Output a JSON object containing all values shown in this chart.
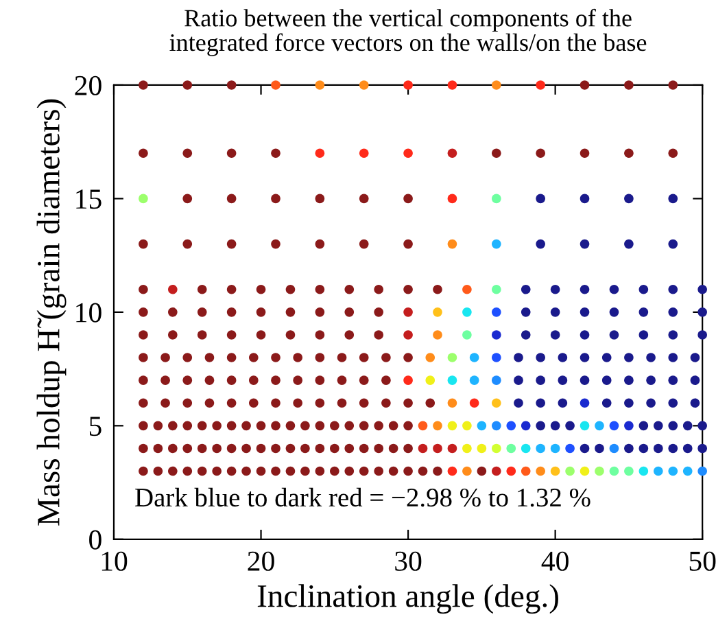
{
  "chart_data": {
    "type": "scatter",
    "title": "Ratio between the vertical components of the\nintegrated force vectors on the walls/on the base",
    "xlabel": "Inclination angle (deg.)",
    "ylabel": "Mass holdup H̃ (grain diameters)",
    "annotations": [
      "Dark blue to dark red = −2.98 % to 1.32 %"
    ],
    "xlim": [
      10,
      50
    ],
    "ylim": [
      0,
      20
    ],
    "xticks": [
      10,
      20,
      30,
      40,
      50
    ],
    "yticks": [
      0,
      5,
      10,
      15,
      20
    ],
    "marker": "circle",
    "series": [
      {
        "x": [
          12,
          15,
          18,
          21,
          24,
          27,
          30,
          33,
          36,
          39,
          42,
          45,
          48
        ],
        "values": [
          20,
          20,
          20,
          20,
          20,
          20,
          20,
          20,
          20,
          20,
          20,
          20,
          20
        ],
        "colors": [
          "#8b1a1a",
          "#8b1a1a",
          "#8b1a1a",
          "#ff5a1a",
          "#ff8c1a",
          "#ff8c1a",
          "#ff2a1a",
          "#ff2a1a",
          "#ff8c1a",
          "#ff2a1a",
          "#8b1a1a",
          "#8b1a1a",
          "#8b1a1a"
        ]
      },
      {
        "x": [
          12,
          15,
          18,
          21,
          24,
          27,
          30,
          33,
          36,
          39,
          42,
          45,
          48
        ],
        "values": [
          17,
          17,
          17,
          17,
          17,
          17,
          17,
          17,
          17,
          17,
          17,
          17,
          17
        ],
        "colors": [
          "#8b1a1a",
          "#8b1a1a",
          "#8b1a1a",
          "#8b1a1a",
          "#ff2a1a",
          "#ff2a1a",
          "#ff2a1a",
          "#c41e1e",
          "#8b1a1a",
          "#8b1a1a",
          "#8b1a1a",
          "#8b1a1a",
          "#8b1a1a"
        ]
      },
      {
        "x": [
          12,
          15,
          18,
          21,
          24,
          27,
          30,
          33,
          36,
          39,
          42,
          45,
          48
        ],
        "values": [
          15,
          15,
          15,
          15,
          15,
          15,
          15,
          15,
          15,
          15,
          15,
          15,
          15
        ],
        "colors": [
          "#9cff6c",
          "#8b1a1a",
          "#8b1a1a",
          "#8b1a1a",
          "#8b1a1a",
          "#8b1a1a",
          "#8b1a1a",
          "#ff2a1a",
          "#6effa0",
          "#1a1a8c",
          "#1a1a8c",
          "#1a1a8c",
          "#1a1a8c"
        ]
      },
      {
        "x": [
          12,
          15,
          18,
          21,
          24,
          27,
          30,
          33,
          36,
          39,
          42,
          45,
          48
        ],
        "values": [
          13,
          13,
          13,
          13,
          13,
          13,
          13,
          13,
          13,
          13,
          13,
          13,
          13
        ],
        "colors": [
          "#8b1a1a",
          "#8b1a1a",
          "#8b1a1a",
          "#8b1a1a",
          "#8b1a1a",
          "#8b1a1a",
          "#8b1a1a",
          "#ff8c1a",
          "#1eb4ff",
          "#1a1a8c",
          "#1a1a8c",
          "#1a1a8c",
          "#1a1a8c"
        ]
      },
      {
        "x": [
          12,
          14,
          16,
          18,
          20,
          22,
          24,
          26,
          28,
          30,
          32,
          34,
          36,
          38,
          40,
          42,
          44,
          46,
          48,
          50
        ],
        "values": [
          11,
          11,
          11,
          11,
          11,
          11,
          11,
          11,
          11,
          11,
          11,
          11,
          11,
          11,
          11,
          11,
          11,
          11,
          11,
          11
        ],
        "colors": [
          "#8b1a1a",
          "#c41e1e",
          "#8b1a1a",
          "#8b1a1a",
          "#8b1a1a",
          "#8b1a1a",
          "#8b1a1a",
          "#8b1a1a",
          "#8b1a1a",
          "#8b1a1a",
          "#8b1a1a",
          "#ff5a1a",
          "#6effa0",
          "#1a1a8c",
          "#1a1a8c",
          "#1a1a8c",
          "#1a1a8c",
          "#1a1a8c",
          "#1a1a8c",
          "#1a1a8c"
        ]
      },
      {
        "x": [
          12,
          14,
          16,
          18,
          20,
          22,
          24,
          26,
          28,
          30,
          32,
          34,
          36,
          38,
          40,
          42,
          44,
          46,
          48,
          50
        ],
        "values": [
          10,
          10,
          10,
          10,
          10,
          10,
          10,
          10,
          10,
          10,
          10,
          10,
          10,
          10,
          10,
          10,
          10,
          10,
          10,
          10
        ],
        "colors": [
          "#8b1a1a",
          "#8b1a1a",
          "#8b1a1a",
          "#8b1a1a",
          "#8b1a1a",
          "#8b1a1a",
          "#8b1a1a",
          "#8b1a1a",
          "#8b1a1a",
          "#c41e1e",
          "#ffc01a",
          "#19e6f0",
          "#1e50ff",
          "#1a1a8c",
          "#1a1a8c",
          "#1a1a8c",
          "#1a1a8c",
          "#1a1a8c",
          "#1a1a8c",
          "#1a1a8c"
        ]
      },
      {
        "x": [
          12,
          14,
          16,
          18,
          20,
          22,
          24,
          26,
          28,
          30,
          32,
          34,
          36,
          38,
          40,
          42,
          44,
          46,
          48,
          50
        ],
        "values": [
          9,
          9,
          9,
          9,
          9,
          9,
          9,
          9,
          9,
          9,
          9,
          9,
          9,
          9,
          9,
          9,
          9,
          9,
          9,
          9
        ],
        "colors": [
          "#8b1a1a",
          "#8b1a1a",
          "#8b1a1a",
          "#8b1a1a",
          "#8b1a1a",
          "#8b1a1a",
          "#8b1a1a",
          "#8b1a1a",
          "#8b1a1a",
          "#c41e1e",
          "#ff8c1a",
          "#6effa0",
          "#1a2ad0",
          "#1a1a8c",
          "#1a1a8c",
          "#1a1a8c",
          "#1a1a8c",
          "#1a1a8c",
          "#1a1a8c",
          "#1a1a8c"
        ]
      },
      {
        "x": [
          12,
          13.5,
          15,
          16.5,
          18,
          19.5,
          21,
          22.5,
          24,
          25.5,
          27,
          28.5,
          30,
          31.5,
          33,
          34.5,
          36,
          37.5,
          39,
          40.5,
          42,
          43.5,
          45,
          46.5,
          48,
          49.5
        ],
        "values": [
          8,
          8,
          8,
          8,
          8,
          8,
          8,
          8,
          8,
          8,
          8,
          8,
          8,
          8,
          8,
          8,
          8,
          8,
          8,
          8,
          8,
          8,
          8,
          8,
          8,
          8
        ],
        "colors": [
          "#8b1a1a",
          "#8b1a1a",
          "#8b1a1a",
          "#8b1a1a",
          "#8b1a1a",
          "#8b1a1a",
          "#8b1a1a",
          "#8b1a1a",
          "#8b1a1a",
          "#8b1a1a",
          "#8b1a1a",
          "#8b1a1a",
          "#8b1a1a",
          "#ff8c1a",
          "#9cff6c",
          "#1eb4ff",
          "#1e50ff",
          "#1a1a8c",
          "#1a1a8c",
          "#1a1a8c",
          "#1a1a8c",
          "#1a1a8c",
          "#1a1a8c",
          "#1a1a8c",
          "#1a1a8c",
          "#1a1a8c"
        ]
      },
      {
        "x": [
          12,
          13.5,
          15,
          16.5,
          18,
          19.5,
          21,
          22.5,
          24,
          25.5,
          27,
          28.5,
          30,
          31.5,
          33,
          34.5,
          36,
          37.5,
          39,
          40.5,
          42,
          43.5,
          45,
          46.5,
          48,
          49.5
        ],
        "values": [
          7,
          7,
          7,
          7,
          7,
          7,
          7,
          7,
          7,
          7,
          7,
          7,
          7,
          7,
          7,
          7,
          7,
          7,
          7,
          7,
          7,
          7,
          7,
          7,
          7,
          7
        ],
        "colors": [
          "#8b1a1a",
          "#8b1a1a",
          "#8b1a1a",
          "#8b1a1a",
          "#8b1a1a",
          "#8b1a1a",
          "#8b1a1a",
          "#8b1a1a",
          "#8b1a1a",
          "#8b1a1a",
          "#8b1a1a",
          "#8b1a1a",
          "#ff2a1a",
          "#f0f019",
          "#19e6f0",
          "#1eb4ff",
          "#1e8cff",
          "#1a1a8c",
          "#1a1a8c",
          "#1a1a8c",
          "#1a1a8c",
          "#1a1a8c",
          "#1a1a8c",
          "#1a1a8c",
          "#1a1a8c",
          "#1a1a8c"
        ]
      },
      {
        "x": [
          12,
          13.5,
          15,
          16.5,
          18,
          19.5,
          21,
          22.5,
          24,
          25.5,
          27,
          28.5,
          30,
          31.5,
          33,
          34.5,
          36,
          37.5,
          39,
          40.5,
          42,
          43.5,
          45,
          46.5,
          48,
          49.5
        ],
        "values": [
          6,
          6,
          6,
          6,
          6,
          6,
          6,
          6,
          6,
          6,
          6,
          6,
          6,
          6,
          6,
          6,
          6,
          6,
          6,
          6,
          6,
          6,
          6,
          6,
          6,
          6
        ],
        "colors": [
          "#8b1a1a",
          "#8b1a1a",
          "#8b1a1a",
          "#8b1a1a",
          "#8b1a1a",
          "#8b1a1a",
          "#8b1a1a",
          "#8b1a1a",
          "#8b1a1a",
          "#8b1a1a",
          "#8b1a1a",
          "#8b1a1a",
          "#8b1a1a",
          "#8b1a1a",
          "#ff8c1a",
          "#ff2a1a",
          "#ffc01a",
          "#1a1a8c",
          "#1a1a8c",
          "#1a1a8c",
          "#1a2ad0",
          "#1a1a8c",
          "#1a1a8c",
          "#1a1a8c",
          "#1a1a8c",
          "#1a1a8c"
        ]
      },
      {
        "x": [
          12,
          13,
          14,
          15,
          16,
          17,
          18,
          19,
          20,
          21,
          22,
          23,
          24,
          25,
          26,
          27,
          28,
          29,
          30,
          31,
          32,
          33,
          34,
          35,
          36,
          37,
          38,
          39,
          40,
          41,
          42,
          43,
          44,
          45,
          46,
          47,
          48,
          49,
          50
        ],
        "values": [
          5,
          5,
          5,
          5,
          5,
          5,
          5,
          5,
          5,
          5,
          5,
          5,
          5,
          5,
          5,
          5,
          5,
          5,
          5,
          5,
          5,
          5,
          5,
          5,
          5,
          5,
          5,
          5,
          5,
          5,
          5,
          5,
          5,
          5,
          5,
          5,
          5,
          5,
          5
        ],
        "colors": [
          "#8b1a1a",
          "#8b1a1a",
          "#8b1a1a",
          "#8b1a1a",
          "#8b1a1a",
          "#8b1a1a",
          "#8b1a1a",
          "#8b1a1a",
          "#8b1a1a",
          "#8b1a1a",
          "#8b1a1a",
          "#8b1a1a",
          "#8b1a1a",
          "#8b1a1a",
          "#8b1a1a",
          "#8b1a1a",
          "#8b1a1a",
          "#8b1a1a",
          "#8b1a1a",
          "#ff5a1a",
          "#ff8c1a",
          "#f0f019",
          "#f0f019",
          "#1eb4ff",
          "#1e8cff",
          "#1e50ff",
          "#1a2ad0",
          "#1a1a8c",
          "#1a1a8c",
          "#1a1a8c",
          "#19e6f0",
          "#1eb4ff",
          "#1e50ff",
          "#1a2ad0",
          "#1a1a8c",
          "#1a1a8c",
          "#1a1a8c",
          "#1a1a8c",
          "#1a1a8c"
        ]
      },
      {
        "x": [
          12,
          13,
          14,
          15,
          16,
          17,
          18,
          19,
          20,
          21,
          22,
          23,
          24,
          25,
          26,
          27,
          28,
          29,
          30,
          31,
          32,
          33,
          34,
          35,
          36,
          37,
          38,
          39,
          40,
          41,
          42,
          43,
          44,
          45,
          46,
          47,
          48,
          49,
          50
        ],
        "values": [
          4,
          4,
          4,
          4,
          4,
          4,
          4,
          4,
          4,
          4,
          4,
          4,
          4,
          4,
          4,
          4,
          4,
          4,
          4,
          4,
          4,
          4,
          4,
          4,
          4,
          4,
          4,
          4,
          4,
          4,
          4,
          4,
          4,
          4,
          4,
          4,
          4,
          4,
          4
        ],
        "colors": [
          "#8b1a1a",
          "#8b1a1a",
          "#8b1a1a",
          "#8b1a1a",
          "#8b1a1a",
          "#8b1a1a",
          "#8b1a1a",
          "#8b1a1a",
          "#8b1a1a",
          "#8b1a1a",
          "#8b1a1a",
          "#8b1a1a",
          "#8b1a1a",
          "#8b1a1a",
          "#8b1a1a",
          "#8b1a1a",
          "#8b1a1a",
          "#8b1a1a",
          "#8b1a1a",
          "#c41e1e",
          "#c41e1e",
          "#c41e1e",
          "#f0f019",
          "#f0f019",
          "#d2ff32",
          "#6effa0",
          "#19e6f0",
          "#1eb4ff",
          "#1eb4ff",
          "#1e50ff",
          "#1a1a8c",
          "#1a1a8c",
          "#1e8cff",
          "#1a1a8c",
          "#1a1a8c",
          "#1a1a8c",
          "#1a1a8c",
          "#1a1a8c",
          "#1a1a8c"
        ]
      },
      {
        "x": [
          12,
          13,
          14,
          15,
          16,
          17,
          18,
          19,
          20,
          21,
          22,
          23,
          24,
          25,
          26,
          27,
          28,
          29,
          30,
          31,
          32,
          33,
          34,
          35,
          36,
          37,
          38,
          39,
          40,
          41,
          42,
          43,
          44,
          45,
          46,
          47,
          48,
          49,
          50
        ],
        "values": [
          3,
          3,
          3,
          3,
          3,
          3,
          3,
          3,
          3,
          3,
          3,
          3,
          3,
          3,
          3,
          3,
          3,
          3,
          3,
          3,
          3,
          3,
          3,
          3,
          3,
          3,
          3,
          3,
          3,
          3,
          3,
          3,
          3,
          3,
          3,
          3,
          3,
          3,
          3
        ],
        "colors": [
          "#8b1a1a",
          "#8b1a1a",
          "#8b1a1a",
          "#8b1a1a",
          "#8b1a1a",
          "#8b1a1a",
          "#8b1a1a",
          "#8b1a1a",
          "#8b1a1a",
          "#8b1a1a",
          "#8b1a1a",
          "#8b1a1a",
          "#8b1a1a",
          "#8b1a1a",
          "#8b1a1a",
          "#8b1a1a",
          "#8b1a1a",
          "#8b1a1a",
          "#8b1a1a",
          "#8b1a1a",
          "#8b1a1a",
          "#ff2a1a",
          "#ff8c1a",
          "#8b1a1a",
          "#c41e1e",
          "#ff2a1a",
          "#ff5a1a",
          "#ff8c1a",
          "#ffc01a",
          "#9cff6c",
          "#f0f019",
          "#9cff6c",
          "#6effa0",
          "#6effa0",
          "#19e6f0",
          "#1eb4ff",
          "#1eb4ff",
          "#1eb4ff",
          "#1e8cff"
        ]
      }
    ]
  }
}
